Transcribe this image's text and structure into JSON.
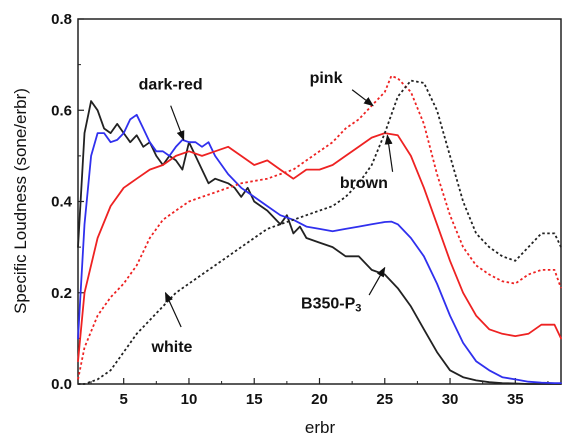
{
  "chart_data": {
    "type": "line",
    "xlabel": "erbr",
    "ylabel": "Specific Loudness  (sone/erbr)",
    "xlim": [
      1.5,
      38.5
    ],
    "ylim": [
      0,
      0.8
    ],
    "xticks": [
      5,
      10,
      15,
      20,
      25,
      30,
      35
    ],
    "xtick_labels": [
      "5",
      "10",
      "15",
      "20",
      "25",
      "30",
      "35"
    ],
    "yticks": [
      0.0,
      0.2,
      0.4,
      0.6,
      0.8
    ],
    "ytick_labels": [
      "0.0",
      "0.2",
      "0.4",
      "0.6",
      "0.8"
    ],
    "grid": false,
    "legend": "none",
    "series": [
      {
        "key": "black",
        "color": "#222222",
        "dash": "solid",
        "x": [
          1.5,
          2,
          2.5,
          3,
          3.5,
          4,
          4.5,
          5,
          5.5,
          6,
          6.5,
          7,
          7.5,
          8,
          8.5,
          9,
          9.5,
          10,
          10.5,
          11,
          11.5,
          12,
          12.5,
          13,
          13.5,
          14,
          14.5,
          15,
          16,
          17,
          17.5,
          18,
          18.5,
          19,
          20,
          21,
          22,
          23,
          24,
          25,
          26,
          27,
          28,
          29,
          30,
          31,
          32,
          33,
          34,
          35,
          36,
          37,
          38,
          38.5
        ],
        "y": [
          0.3,
          0.55,
          0.62,
          0.6,
          0.56,
          0.55,
          0.57,
          0.55,
          0.53,
          0.545,
          0.52,
          0.53,
          0.5,
          0.48,
          0.5,
          0.49,
          0.47,
          0.53,
          0.5,
          0.47,
          0.44,
          0.45,
          0.445,
          0.44,
          0.43,
          0.41,
          0.43,
          0.4,
          0.38,
          0.35,
          0.37,
          0.33,
          0.345,
          0.32,
          0.31,
          0.3,
          0.28,
          0.28,
          0.25,
          0.24,
          0.21,
          0.17,
          0.12,
          0.07,
          0.03,
          0.015,
          0.008,
          0.004,
          0.002,
          0.001,
          0.0,
          0.0,
          0.0,
          0.0
        ]
      },
      {
        "key": "blue",
        "color": "#3030ee",
        "dash": "solid",
        "x": [
          1.5,
          2,
          2.5,
          3,
          3.5,
          4,
          4.5,
          5,
          5.5,
          6,
          6.5,
          7,
          7.5,
          8,
          8.5,
          9,
          9.5,
          10,
          10.5,
          11,
          11.5,
          12,
          12.5,
          13,
          14,
          15,
          16,
          17,
          18,
          19,
          20,
          21,
          22,
          23,
          24,
          25,
          25.5,
          26,
          27,
          28,
          29,
          30,
          31,
          32,
          33,
          34,
          35,
          36,
          37,
          38,
          38.5
        ],
        "y": [
          0.1,
          0.35,
          0.5,
          0.55,
          0.55,
          0.53,
          0.535,
          0.55,
          0.58,
          0.59,
          0.56,
          0.53,
          0.51,
          0.51,
          0.5,
          0.52,
          0.535,
          0.53,
          0.53,
          0.52,
          0.53,
          0.5,
          0.48,
          0.46,
          0.43,
          0.41,
          0.39,
          0.37,
          0.36,
          0.345,
          0.34,
          0.335,
          0.34,
          0.345,
          0.35,
          0.355,
          0.356,
          0.35,
          0.32,
          0.28,
          0.22,
          0.15,
          0.09,
          0.05,
          0.03,
          0.015,
          0.01,
          0.005,
          0.003,
          0.002,
          0.002
        ]
      },
      {
        "key": "red",
        "color": "#ee2222",
        "dash": "solid",
        "x": [
          1.5,
          2,
          3,
          4,
          5,
          6,
          7,
          8,
          9,
          10,
          11,
          12,
          13,
          14,
          15,
          16,
          17,
          18,
          19,
          20,
          21,
          22,
          23,
          24,
          25,
          26,
          27,
          28,
          29,
          30,
          31,
          32,
          33,
          34,
          35,
          36,
          37,
          38,
          38.5
        ],
        "y": [
          0.05,
          0.2,
          0.32,
          0.39,
          0.43,
          0.45,
          0.47,
          0.48,
          0.5,
          0.51,
          0.5,
          0.51,
          0.52,
          0.5,
          0.48,
          0.49,
          0.47,
          0.45,
          0.47,
          0.47,
          0.48,
          0.5,
          0.52,
          0.54,
          0.55,
          0.545,
          0.5,
          0.43,
          0.35,
          0.27,
          0.2,
          0.15,
          0.12,
          0.11,
          0.105,
          0.11,
          0.13,
          0.13,
          0.1
        ]
      },
      {
        "key": "red-dotted",
        "color": "#ee2222",
        "dash": "dotted",
        "x": [
          1.5,
          2,
          3,
          4,
          5,
          6,
          7,
          8,
          9,
          10,
          11,
          12,
          13,
          14,
          15,
          16,
          17,
          18,
          19,
          20,
          21,
          22,
          23,
          24,
          25,
          25.5,
          26,
          27,
          28,
          29,
          30,
          31,
          32,
          33,
          34,
          35,
          36,
          37,
          38,
          38.5
        ],
        "y": [
          0.01,
          0.08,
          0.15,
          0.19,
          0.22,
          0.26,
          0.32,
          0.36,
          0.38,
          0.4,
          0.41,
          0.42,
          0.43,
          0.44,
          0.445,
          0.45,
          0.46,
          0.47,
          0.49,
          0.51,
          0.53,
          0.56,
          0.58,
          0.61,
          0.64,
          0.675,
          0.67,
          0.64,
          0.57,
          0.46,
          0.37,
          0.3,
          0.26,
          0.24,
          0.225,
          0.22,
          0.24,
          0.25,
          0.25,
          0.21
        ]
      },
      {
        "key": "black-dotted",
        "color": "#222222",
        "dash": "dotted",
        "x": [
          1.5,
          2,
          3,
          4,
          5,
          6,
          7,
          8,
          9,
          10,
          11,
          12,
          13,
          14,
          15,
          16,
          17,
          18,
          19,
          20,
          21,
          22,
          23,
          24,
          25,
          26,
          27,
          28,
          29,
          30,
          31,
          32,
          33,
          34,
          35,
          36,
          37,
          38,
          38.5
        ],
        "y": [
          0.0,
          0.0,
          0.01,
          0.03,
          0.07,
          0.11,
          0.14,
          0.17,
          0.2,
          0.22,
          0.24,
          0.26,
          0.28,
          0.3,
          0.32,
          0.34,
          0.35,
          0.36,
          0.37,
          0.38,
          0.39,
          0.41,
          0.44,
          0.48,
          0.55,
          0.63,
          0.665,
          0.66,
          0.6,
          0.5,
          0.4,
          0.33,
          0.3,
          0.28,
          0.27,
          0.3,
          0.33,
          0.33,
          0.3
        ]
      }
    ],
    "annotations": [
      {
        "key": "dark-red",
        "text": "dark-red",
        "subscript": "",
        "text_at": [
          8.6,
          0.645
        ],
        "arrow_from": [
          8.6,
          0.61
        ],
        "arrow_to": [
          9.6,
          0.535
        ]
      },
      {
        "key": "pink",
        "text": "pink",
        "subscript": "",
        "text_at": [
          20.5,
          0.66
        ],
        "arrow_from": [
          22.5,
          0.645
        ],
        "arrow_to": [
          24.1,
          0.61
        ]
      },
      {
        "key": "brown",
        "text": "brown",
        "subscript": "",
        "text_at": [
          23.4,
          0.43
        ],
        "arrow_from": [
          25.6,
          0.465
        ],
        "arrow_to": [
          25.2,
          0.545
        ]
      },
      {
        "key": "b350",
        "text": "B350-P",
        "subscript": "3",
        "text_at": [
          20.9,
          0.165
        ],
        "arrow_from": [
          23.8,
          0.195
        ],
        "arrow_to": [
          25.0,
          0.255
        ]
      },
      {
        "key": "white",
        "text": "white",
        "subscript": "",
        "text_at": [
          8.7,
          0.07
        ],
        "arrow_from": [
          9.4,
          0.125
        ],
        "arrow_to": [
          8.2,
          0.2
        ]
      }
    ]
  }
}
